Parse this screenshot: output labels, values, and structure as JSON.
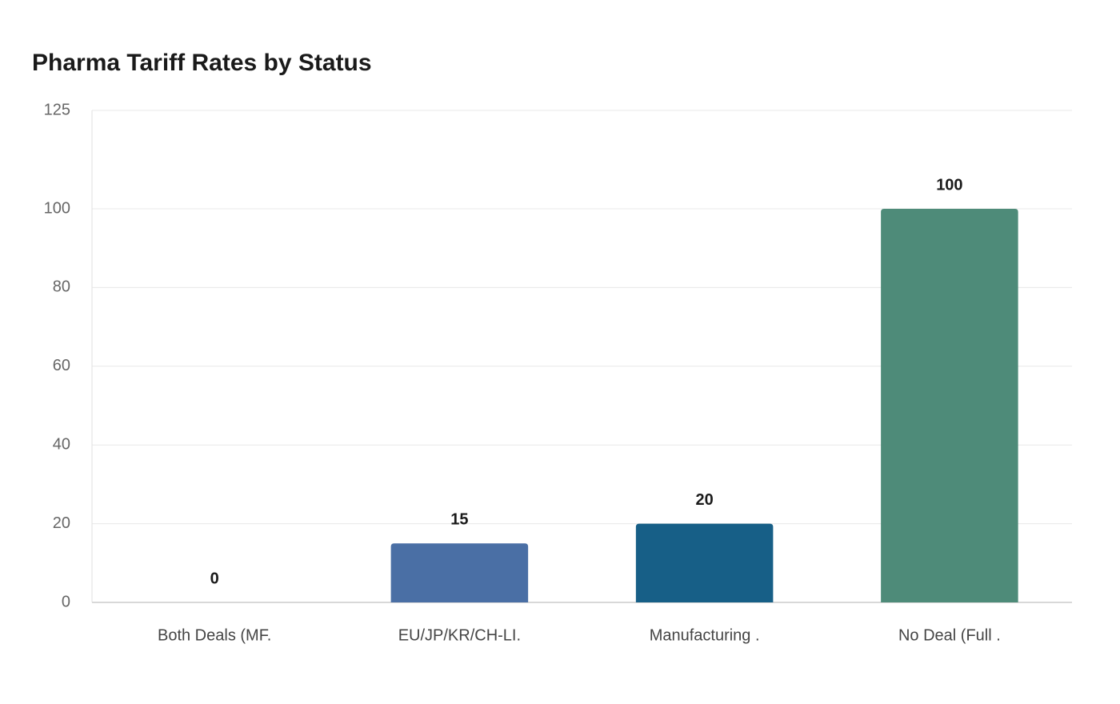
{
  "chart_data": {
    "type": "bar",
    "title": "Pharma Tariff Rates by Status",
    "categories": [
      "Both Deals (MF.",
      "EU/JP/KR/CH-LI.",
      "Manufacturing .",
      "No Deal (Full ."
    ],
    "values": [
      0,
      15,
      20,
      100
    ],
    "colors": [
      "#4a6fa5",
      "#4a6fa5",
      "#175f87",
      "#4e8b79"
    ],
    "ylim": [
      0,
      125
    ],
    "yticks": [
      0,
      20,
      40,
      60,
      80,
      100,
      125
    ],
    "grid": true
  }
}
